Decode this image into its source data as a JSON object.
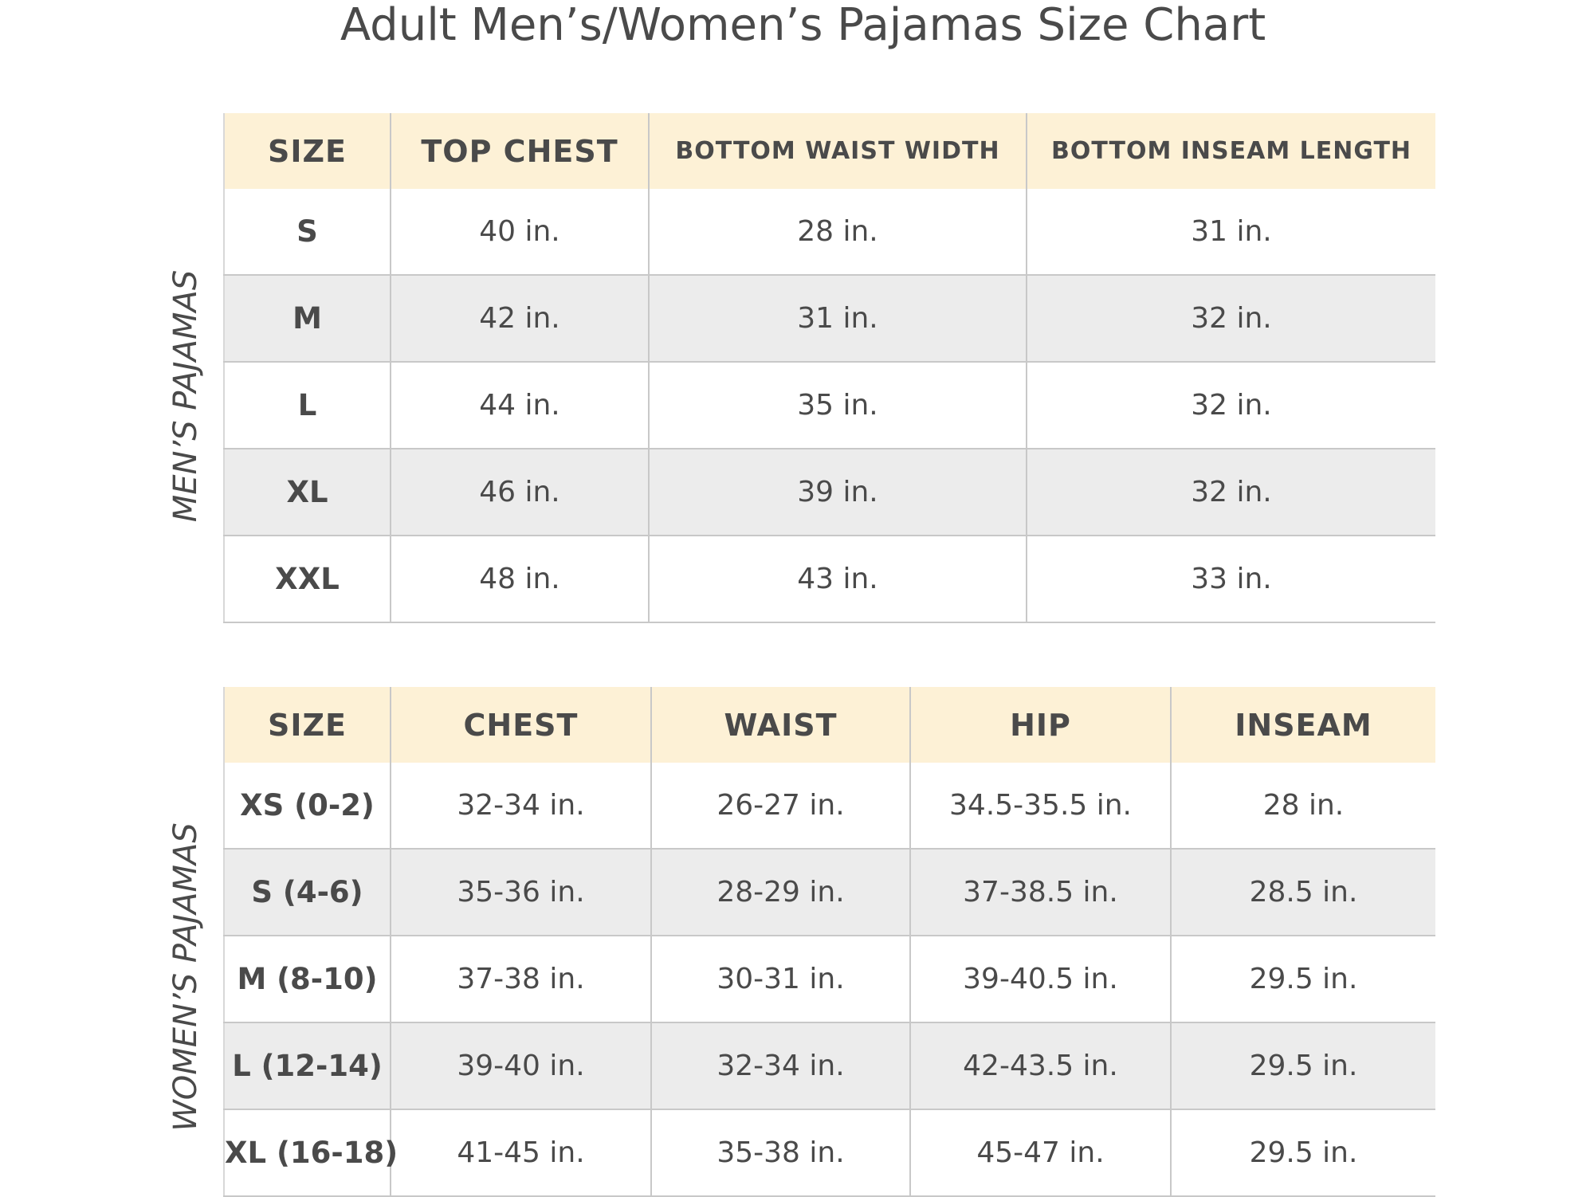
{
  "page": {
    "title": "Adult Men’s/Women’s Pajamas Size Chart"
  },
  "mens": {
    "side_label": "MEN’S PAJAMAS",
    "headers": [
      "SIZE",
      "TOP CHEST",
      "BOTTOM WAIST WIDTH",
      "BOTTOM INSEAM LENGTH"
    ],
    "rows": [
      [
        "S",
        "40 in.",
        "28 in.",
        "31 in."
      ],
      [
        "M",
        "42 in.",
        "31 in.",
        "32 in."
      ],
      [
        "L",
        "44 in.",
        "35 in.",
        "32 in."
      ],
      [
        "XL",
        "46 in.",
        "39 in.",
        "32 in."
      ],
      [
        "XXL",
        "48 in.",
        "43 in.",
        "33 in."
      ]
    ]
  },
  "womens": {
    "side_label": "WOMEN’S PAJAMAS",
    "headers": [
      "SIZE",
      "CHEST",
      "WAIST",
      "HIP",
      "INSEAM"
    ],
    "rows": [
      [
        "XS (0-2)",
        "32-34 in.",
        "26-27 in.",
        "34.5-35.5 in.",
        "28 in."
      ],
      [
        "S (4-6)",
        "35-36 in.",
        "28-29 in.",
        "37-38.5 in.",
        "28.5 in."
      ],
      [
        "M (8-10)",
        "37-38 in.",
        "30-31 in.",
        "39-40.5 in.",
        "29.5 in."
      ],
      [
        "L (12-14)",
        "39-40 in.",
        "32-34 in.",
        "42-43.5 in.",
        "29.5 in."
      ],
      [
        "XL (16-18)",
        "41-45 in.",
        "35-38 in.",
        "45-47 in.",
        "29.5 in."
      ]
    ]
  },
  "colors": {
    "header_background": "#fdf1d6",
    "alternate_row_background": "#ececec",
    "text": "#4a4a4a",
    "grid_lines": "#c8c8c8"
  }
}
